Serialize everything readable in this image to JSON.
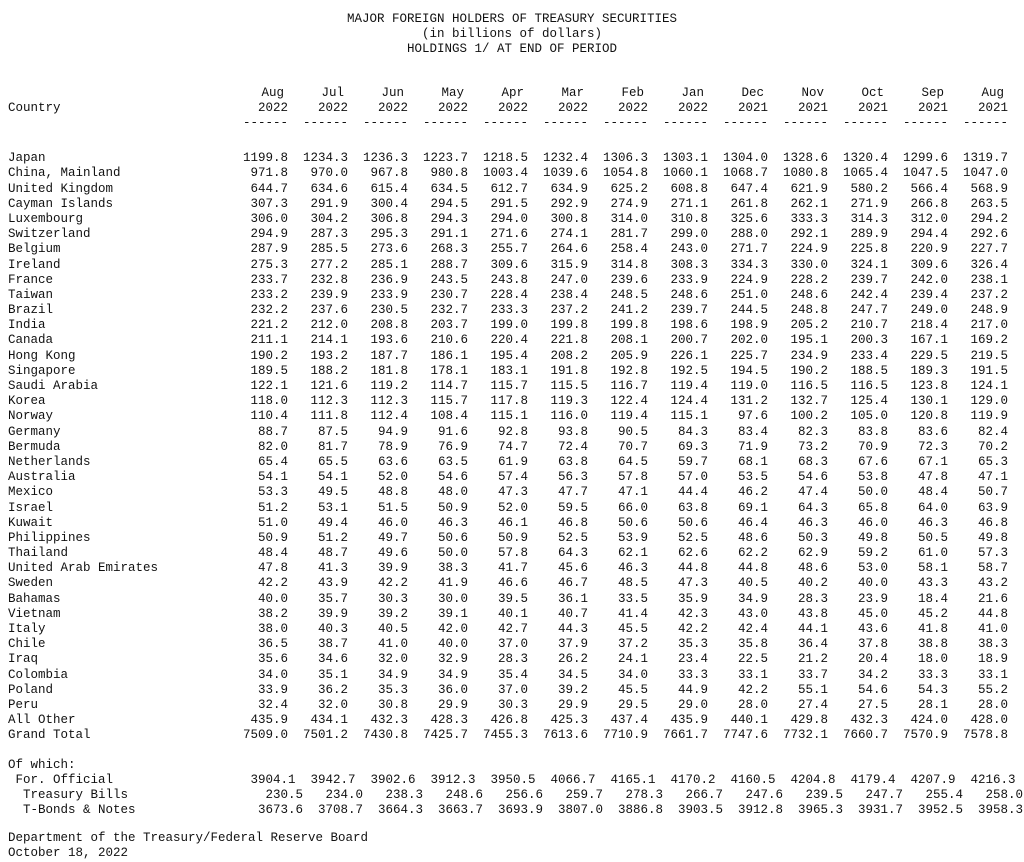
{
  "title": {
    "line1": "MAJOR FOREIGN HOLDERS OF TREASURY SECURITIES",
    "line2": "(in billions of dollars)",
    "line3": "HOLDINGS 1/ AT END OF PERIOD"
  },
  "table": {
    "country_header": "Country",
    "underline": "------",
    "columns": [
      {
        "month": "Aug",
        "year": "2022"
      },
      {
        "month": "Jul",
        "year": "2022"
      },
      {
        "month": "Jun",
        "year": "2022"
      },
      {
        "month": "May",
        "year": "2022"
      },
      {
        "month": "Apr",
        "year": "2022"
      },
      {
        "month": "Mar",
        "year": "2022"
      },
      {
        "month": "Feb",
        "year": "2022"
      },
      {
        "month": "Jan",
        "year": "2022"
      },
      {
        "month": "Dec",
        "year": "2021"
      },
      {
        "month": "Nov",
        "year": "2021"
      },
      {
        "month": "Oct",
        "year": "2021"
      },
      {
        "month": "Sep",
        "year": "2021"
      },
      {
        "month": "Aug",
        "year": "2021"
      }
    ],
    "rows": [
      {
        "country": "Japan",
        "values": [
          "1199.8",
          "1234.3",
          "1236.3",
          "1223.7",
          "1218.5",
          "1232.4",
          "1306.3",
          "1303.1",
          "1304.0",
          "1328.6",
          "1320.4",
          "1299.6",
          "1319.7"
        ]
      },
      {
        "country": "China, Mainland",
        "values": [
          "971.8",
          "970.0",
          "967.8",
          "980.8",
          "1003.4",
          "1039.6",
          "1054.8",
          "1060.1",
          "1068.7",
          "1080.8",
          "1065.4",
          "1047.5",
          "1047.0"
        ]
      },
      {
        "country": "United Kingdom",
        "values": [
          "644.7",
          "634.6",
          "615.4",
          "634.5",
          "612.7",
          "634.9",
          "625.2",
          "608.8",
          "647.4",
          "621.9",
          "580.2",
          "566.4",
          "568.9"
        ]
      },
      {
        "country": "Cayman Islands",
        "values": [
          "307.3",
          "291.9",
          "300.4",
          "294.5",
          "291.5",
          "292.9",
          "274.9",
          "271.1",
          "261.8",
          "262.1",
          "271.9",
          "266.8",
          "263.5"
        ]
      },
      {
        "country": "Luxembourg",
        "values": [
          "306.0",
          "304.2",
          "306.8",
          "294.3",
          "294.0",
          "300.8",
          "314.0",
          "310.8",
          "325.6",
          "333.3",
          "314.3",
          "312.0",
          "294.2"
        ]
      },
      {
        "country": "Switzerland",
        "values": [
          "294.9",
          "287.3",
          "295.3",
          "291.1",
          "271.6",
          "274.1",
          "281.7",
          "299.0",
          "288.0",
          "292.1",
          "289.9",
          "294.4",
          "292.6"
        ]
      },
      {
        "country": "Belgium",
        "values": [
          "287.9",
          "285.5",
          "273.6",
          "268.3",
          "255.7",
          "264.6",
          "258.4",
          "243.0",
          "271.7",
          "224.9",
          "225.8",
          "220.9",
          "227.7"
        ]
      },
      {
        "country": "Ireland",
        "values": [
          "275.3",
          "277.2",
          "285.1",
          "288.7",
          "309.6",
          "315.9",
          "314.8",
          "308.3",
          "334.3",
          "330.0",
          "324.1",
          "309.6",
          "326.4"
        ]
      },
      {
        "country": "France",
        "values": [
          "233.7",
          "232.8",
          "236.9",
          "243.5",
          "243.8",
          "247.0",
          "239.6",
          "233.9",
          "224.9",
          "228.2",
          "239.7",
          "242.0",
          "238.1"
        ]
      },
      {
        "country": "Taiwan",
        "values": [
          "233.2",
          "239.9",
          "233.9",
          "230.7",
          "228.4",
          "238.4",
          "248.5",
          "248.6",
          "251.0",
          "248.6",
          "242.4",
          "239.4",
          "237.2"
        ]
      },
      {
        "country": "Brazil",
        "values": [
          "232.2",
          "237.6",
          "230.5",
          "232.7",
          "233.3",
          "237.2",
          "241.2",
          "239.7",
          "244.5",
          "248.8",
          "247.7",
          "249.0",
          "248.9"
        ]
      },
      {
        "country": "India",
        "values": [
          "221.2",
          "212.0",
          "208.8",
          "203.7",
          "199.0",
          "199.8",
          "199.8",
          "198.6",
          "198.9",
          "205.2",
          "210.7",
          "218.4",
          "217.0"
        ]
      },
      {
        "country": "Canada",
        "values": [
          "211.1",
          "214.1",
          "193.6",
          "210.6",
          "220.4",
          "221.8",
          "208.1",
          "200.7",
          "202.0",
          "195.1",
          "200.3",
          "167.1",
          "169.2"
        ]
      },
      {
        "country": "Hong Kong",
        "values": [
          "190.2",
          "193.2",
          "187.7",
          "186.1",
          "195.4",
          "208.2",
          "205.9",
          "226.1",
          "225.7",
          "234.9",
          "233.4",
          "229.5",
          "219.5"
        ]
      },
      {
        "country": "Singapore",
        "values": [
          "189.5",
          "188.2",
          "181.8",
          "178.1",
          "183.1",
          "191.8",
          "192.8",
          "192.5",
          "194.5",
          "190.2",
          "188.5",
          "189.3",
          "191.5"
        ]
      },
      {
        "country": "Saudi Arabia",
        "values": [
          "122.1",
          "121.6",
          "119.2",
          "114.7",
          "115.7",
          "115.5",
          "116.7",
          "119.4",
          "119.0",
          "116.5",
          "116.5",
          "123.8",
          "124.1"
        ]
      },
      {
        "country": "Korea",
        "values": [
          "118.0",
          "112.3",
          "112.3",
          "115.7",
          "117.8",
          "119.3",
          "122.4",
          "124.4",
          "131.2",
          "132.7",
          "125.4",
          "130.1",
          "129.0"
        ]
      },
      {
        "country": "Norway",
        "values": [
          "110.4",
          "111.8",
          "112.4",
          "108.4",
          "115.1",
          "116.0",
          "119.4",
          "115.1",
          "97.6",
          "100.2",
          "105.0",
          "120.8",
          "119.9"
        ]
      },
      {
        "country": "Germany",
        "values": [
          "88.7",
          "87.5",
          "94.9",
          "91.6",
          "92.8",
          "93.8",
          "90.5",
          "84.3",
          "83.4",
          "82.3",
          "83.8",
          "83.6",
          "82.4"
        ]
      },
      {
        "country": "Bermuda",
        "values": [
          "82.0",
          "81.7",
          "78.9",
          "76.9",
          "74.7",
          "72.4",
          "70.7",
          "69.3",
          "71.9",
          "73.2",
          "70.9",
          "72.3",
          "70.2"
        ]
      },
      {
        "country": "Netherlands",
        "values": [
          "65.4",
          "65.5",
          "63.6",
          "63.5",
          "61.9",
          "63.8",
          "64.5",
          "59.7",
          "68.1",
          "68.3",
          "67.6",
          "67.1",
          "65.3"
        ]
      },
      {
        "country": "Australia",
        "values": [
          "54.1",
          "54.1",
          "52.0",
          "54.6",
          "57.4",
          "56.3",
          "57.8",
          "57.0",
          "53.5",
          "54.6",
          "53.8",
          "47.8",
          "47.1"
        ]
      },
      {
        "country": "Mexico",
        "values": [
          "53.3",
          "49.5",
          "48.8",
          "48.0",
          "47.3",
          "47.7",
          "47.1",
          "44.4",
          "46.2",
          "47.4",
          "50.0",
          "48.4",
          "50.7"
        ]
      },
      {
        "country": "Israel",
        "values": [
          "51.2",
          "53.1",
          "51.5",
          "50.9",
          "52.0",
          "59.5",
          "66.0",
          "63.8",
          "69.1",
          "64.3",
          "65.8",
          "64.0",
          "63.9"
        ]
      },
      {
        "country": "Kuwait",
        "values": [
          "51.0",
          "49.4",
          "46.0",
          "46.3",
          "46.1",
          "46.8",
          "50.6",
          "50.6",
          "46.4",
          "46.3",
          "46.0",
          "46.3",
          "46.8"
        ]
      },
      {
        "country": "Philippines",
        "values": [
          "50.9",
          "51.2",
          "49.7",
          "50.6",
          "50.9",
          "52.5",
          "53.9",
          "52.5",
          "48.6",
          "50.3",
          "49.8",
          "50.5",
          "49.8"
        ]
      },
      {
        "country": "Thailand",
        "values": [
          "48.4",
          "48.7",
          "49.6",
          "50.0",
          "57.8",
          "64.3",
          "62.1",
          "62.6",
          "62.2",
          "62.9",
          "59.2",
          "61.0",
          "57.3"
        ]
      },
      {
        "country": "United Arab Emirates",
        "values": [
          "47.8",
          "41.3",
          "39.9",
          "38.3",
          "41.7",
          "45.6",
          "46.3",
          "44.8",
          "44.8",
          "48.6",
          "53.0",
          "58.1",
          "58.7"
        ]
      },
      {
        "country": "Sweden",
        "values": [
          "42.2",
          "43.9",
          "42.2",
          "41.9",
          "46.6",
          "46.7",
          "48.5",
          "47.3",
          "40.5",
          "40.2",
          "40.0",
          "43.3",
          "43.2"
        ]
      },
      {
        "country": "Bahamas",
        "values": [
          "40.0",
          "35.7",
          "30.3",
          "30.0",
          "39.5",
          "36.1",
          "33.5",
          "35.9",
          "34.9",
          "28.3",
          "23.9",
          "18.4",
          "21.6"
        ]
      },
      {
        "country": "Vietnam",
        "values": [
          "38.2",
          "39.9",
          "39.2",
          "39.1",
          "40.1",
          "40.7",
          "41.4",
          "42.3",
          "43.0",
          "43.8",
          "45.0",
          "45.2",
          "44.8"
        ]
      },
      {
        "country": "Italy",
        "values": [
          "38.0",
          "40.3",
          "40.5",
          "42.0",
          "42.7",
          "44.3",
          "45.5",
          "42.2",
          "42.4",
          "44.1",
          "43.6",
          "41.8",
          "41.0"
        ]
      },
      {
        "country": "Chile",
        "values": [
          "36.5",
          "38.7",
          "41.0",
          "40.0",
          "37.0",
          "37.9",
          "37.2",
          "35.3",
          "35.8",
          "36.4",
          "37.8",
          "38.8",
          "38.3"
        ]
      },
      {
        "country": "Iraq",
        "values": [
          "35.6",
          "34.6",
          "32.0",
          "32.9",
          "28.3",
          "26.2",
          "24.1",
          "23.4",
          "22.5",
          "21.2",
          "20.4",
          "18.0",
          "18.9"
        ]
      },
      {
        "country": "Colombia",
        "values": [
          "34.0",
          "35.1",
          "34.9",
          "34.9",
          "35.4",
          "34.5",
          "34.0",
          "33.3",
          "33.1",
          "33.7",
          "34.2",
          "33.3",
          "33.1"
        ]
      },
      {
        "country": "Poland",
        "values": [
          "33.9",
          "36.2",
          "35.3",
          "36.0",
          "37.0",
          "39.2",
          "45.5",
          "44.9",
          "42.2",
          "55.1",
          "54.6",
          "54.3",
          "55.2"
        ]
      },
      {
        "country": "Peru",
        "values": [
          "32.4",
          "32.0",
          "30.8",
          "29.9",
          "30.3",
          "29.9",
          "29.5",
          "29.0",
          "28.0",
          "27.4",
          "27.5",
          "28.1",
          "28.0"
        ]
      },
      {
        "country": "All Other",
        "values": [
          "435.9",
          "434.1",
          "432.3",
          "428.3",
          "426.8",
          "425.3",
          "437.4",
          "435.9",
          "440.1",
          "429.8",
          "432.3",
          "424.0",
          "428.0"
        ]
      },
      {
        "country": "Grand Total",
        "values": [
          "7509.0",
          "7501.2",
          "7430.8",
          "7425.7",
          "7455.3",
          "7613.6",
          "7710.9",
          "7661.7",
          "7747.6",
          "7732.1",
          "7660.7",
          "7570.9",
          "7578.8"
        ]
      }
    ],
    "of_which": {
      "label": "Of which:",
      "rows": [
        {
          "label": "For. Official",
          "indent": 1,
          "values": [
            "3904.1",
            "3942.7",
            "3902.6",
            "3912.3",
            "3950.5",
            "4066.7",
            "4165.1",
            "4170.2",
            "4160.5",
            "4204.8",
            "4179.4",
            "4207.9",
            "4216.3"
          ]
        },
        {
          "label": "Treasury Bills",
          "indent": 2,
          "values": [
            "230.5",
            "234.0",
            "238.3",
            "248.6",
            "256.6",
            "259.7",
            "278.3",
            "266.7",
            "247.6",
            "239.5",
            "247.7",
            "255.4",
            "258.0"
          ]
        },
        {
          "label": "T-Bonds & Notes",
          "indent": 2,
          "values": [
            "3673.6",
            "3708.7",
            "3664.3",
            "3663.7",
            "3693.9",
            "3807.0",
            "3886.8",
            "3903.5",
            "3912.8",
            "3965.3",
            "3931.7",
            "3952.5",
            "3958.3"
          ]
        }
      ]
    }
  },
  "footer": {
    "line1": "Department of the Treasury/Federal Reserve Board",
    "line2": "October 18, 2022"
  },
  "colors": {
    "background": "#ffffff",
    "text": "#111111"
  }
}
